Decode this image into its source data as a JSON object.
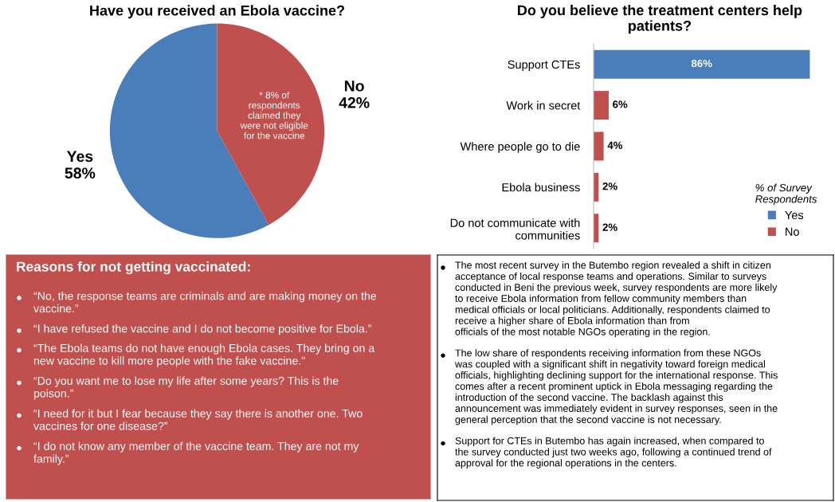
{
  "chart_data": [
    {
      "type": "pie",
      "title": "Have you received an Ebola vaccine?",
      "categories": [
        "Yes",
        "No"
      ],
      "values": [
        58,
        42
      ],
      "colors": [
        "#4a7ebb",
        "#c0504d"
      ],
      "value_labels": [
        "58%",
        "42%"
      ],
      "annotations": [
        "* 8% of\nrespondents\nclaimed they\nwere not eligible\nfor the vaccine"
      ]
    },
    {
      "type": "bar",
      "orientation": "horizontal",
      "title": "Do you believe the treatment centers help\npatients?",
      "categories": [
        "Support CTEs",
        "Work in secret",
        "Where people go to die",
        "Ebola business",
        "Do not communicate with\ncommunities"
      ],
      "series": [
        {
          "name": "Yes",
          "color": "#4a7ebb",
          "values": [
            86,
            null,
            null,
            null,
            null
          ],
          "value_labels": [
            "86%",
            null,
            null,
            null,
            null
          ]
        },
        {
          "name": "No",
          "color": "#c0504d",
          "values": [
            null,
            6,
            4,
            2,
            2
          ],
          "value_labels": [
            null,
            "6%",
            "4%",
            "2%",
            "2%"
          ]
        }
      ],
      "legend_title": "% of Survey\nRespondents",
      "legend": "bottom right"
    },
    {
      "type": "other",
      "title": "Reasons for not getting vaccinated:",
      "annotations": [
        "“No, the response teams are criminals and are making money on the\nvaccine.”",
        "“I have refused the vaccine and I do not become positive for Ebola.”",
        "“The Ebola teams do not have enough Ebola cases. They bring on a\nnew vaccine to kill more people with the fake vaccine.”",
        "“Do you want me to lose my life after some years? This is the\npoison.”",
        "“I need for it but I fear because they say there is another one. Two\nvaccines for one disease?”",
        "“I do not know any member of the vaccine team. They are not my\nfamily.”"
      ]
    },
    {
      "type": "other",
      "annotations": [
        "The most recent survey in the Butembo region revealed a shift in citizen\nacceptance of local response teams and operations. Similar to surveys\nconducted in Beni the previous week, survey respondents are more likely\nto receive Ebola information from fellow community members than\nmedical officials or local politicians. Additionally, respondents claimed to\nreceive a higher share of Ebola information than from\nofficials of the most notable NGOs operating in the region.",
        "The low share of respondents receiving information from these NGOs\nwas coupled with a significant shift in negativity toward foreign medical\nofficials, highlighting declining support for the international response. This\ncomes after a recent prominent uptick in Ebola messaging regarding the\nintroduction of the second vaccine. The backlash against this\nannouncement was immediately evident in survey responses, seen in the\ngeneral perception that the second vaccine is not necessary.",
        "Support for CTEs in Butembo has again increased, when compared to\nthe survey conducted just two weeks ago, following a continued trend of\napproval for the regional operations in the centers."
      ]
    }
  ]
}
